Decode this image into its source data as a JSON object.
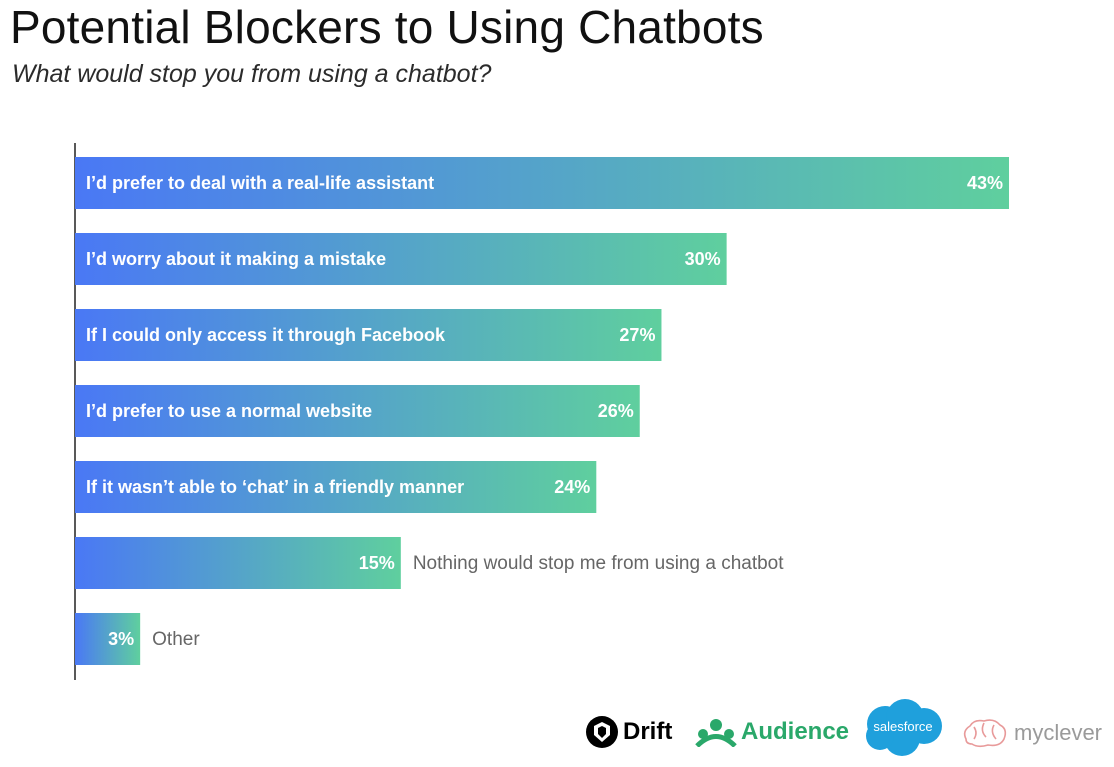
{
  "title": "Potential Blockers to Using Chatbots",
  "subtitle": "What would stop you from using a chatbot?",
  "chart_data": {
    "type": "bar",
    "orientation": "horizontal",
    "categories": [
      "I’d prefer to deal with a real-life assistant",
      "I’d worry about it making a mistake",
      "If I could only access it through Facebook",
      "I’d prefer to use a normal website",
      "If it wasn’t able to ‘chat’ in a friendly manner",
      "Nothing would stop me from using a chatbot",
      "Other"
    ],
    "values": [
      43,
      30,
      27,
      26,
      24,
      15,
      3
    ],
    "value_labels": [
      "43%",
      "30%",
      "27%",
      "26%",
      "24%",
      "15%",
      "3%"
    ],
    "label_inside": [
      true,
      true,
      true,
      true,
      true,
      false,
      false
    ],
    "xlim": [
      0,
      43
    ],
    "gradient_colors": [
      "#4a78f5",
      "#5fcf9e"
    ],
    "grid": false,
    "legend": "none"
  },
  "logos": {
    "drift": "Drift",
    "audience": "Audience",
    "salesforce": "salesforce",
    "myclever": "myclever"
  }
}
